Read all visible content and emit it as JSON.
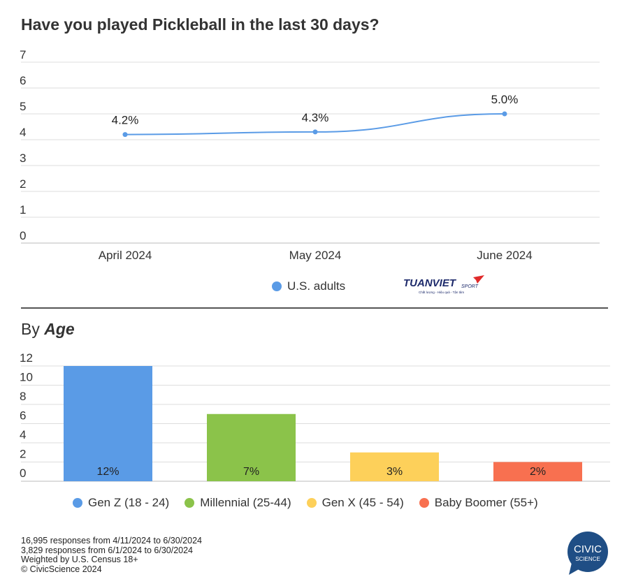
{
  "title": "Have you played Pickleball in the last 30 days?",
  "subtitle": {
    "prefix": "By",
    "emph": "Age"
  },
  "chart_data": [
    {
      "type": "line",
      "categories": [
        "April 2024",
        "May 2024",
        "June 2024"
      ],
      "series": [
        {
          "name": "U.S. adults",
          "values": [
            4.2,
            4.3,
            5.0
          ],
          "labels": [
            "4.2%",
            "4.3%",
            "5.0%"
          ],
          "color": "#5a9be6"
        }
      ],
      "ylim": [
        0,
        7
      ],
      "yticks": [
        "0",
        "1",
        "2",
        "3",
        "4",
        "5",
        "6",
        "7"
      ],
      "grid": true,
      "legend": "bottom"
    },
    {
      "type": "bar",
      "categories": [
        "Gen Z (18 - 24)",
        "Millennial (25-44)",
        "Gen X (45 - 54)",
        "Baby Boomer (55+)"
      ],
      "values": [
        12,
        7,
        3,
        2
      ],
      "labels": [
        "12%",
        "7%",
        "3%",
        "2%"
      ],
      "colors": [
        "#5a9be6",
        "#8bc34a",
        "#fdd05a",
        "#f87050"
      ],
      "ylim": [
        0,
        12
      ],
      "yticks": [
        "0",
        "2",
        "4",
        "6",
        "8",
        "10",
        "12"
      ],
      "grid": true,
      "legend": "bottom"
    }
  ],
  "logo": {
    "brand": "TUANVIET SPORT",
    "tagline": "Chất lượng - Hiệu quả - Tận tâm"
  },
  "footer": [
    "16,995 responses from 4/11/2024 to 6/30/2024",
    "3,829 responses from 6/1/2024 to 6/30/2024",
    "Weighted by U.S. Census 18+",
    "© CivicScience 2024"
  ],
  "civic_logo": {
    "line1": "CIVIC",
    "line2": "SCIENCE",
    "color": "#1f4e85"
  }
}
